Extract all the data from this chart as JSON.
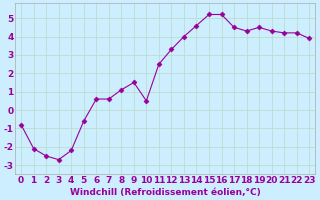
{
  "xlabel": "Windchill (Refroidissement éolien,°C)",
  "x_values": [
    0,
    1,
    2,
    3,
    4,
    5,
    6,
    7,
    8,
    9,
    10,
    11,
    12,
    13,
    14,
    15,
    16,
    17,
    18,
    19,
    20,
    21,
    22,
    23
  ],
  "y_values": [
    -0.8,
    -2.1,
    -2.5,
    -2.7,
    -2.2,
    -0.6,
    0.6,
    0.6,
    1.1,
    1.5,
    0.5,
    2.5,
    3.3,
    4.0,
    4.6,
    5.2,
    5.2,
    4.5,
    4.3,
    4.5,
    4.3,
    4.2,
    4.2,
    3.9
  ],
  "line_color": "#990099",
  "marker": "D",
  "marker_size": 2.5,
  "background_color": "#cceeff",
  "grid_color": "#bbddcc",
  "spine_color": "#aaaaaa",
  "ylim": [
    -3.5,
    5.8
  ],
  "xlim": [
    -0.5,
    23.5
  ],
  "yticks": [
    -3,
    -2,
    -1,
    0,
    1,
    2,
    3,
    4,
    5
  ],
  "xticks": [
    0,
    1,
    2,
    3,
    4,
    5,
    6,
    7,
    8,
    9,
    10,
    11,
    12,
    13,
    14,
    15,
    16,
    17,
    18,
    19,
    20,
    21,
    22,
    23
  ],
  "tick_color": "#990099",
  "label_color": "#990099",
  "label_fontsize": 6.5,
  "tick_fontsize": 6.5
}
